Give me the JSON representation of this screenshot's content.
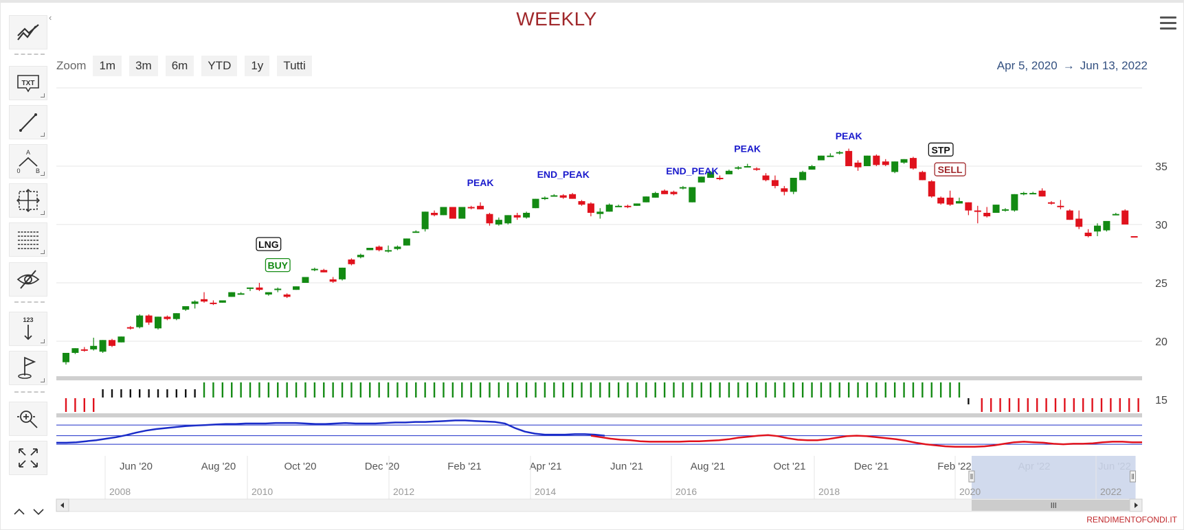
{
  "header": {
    "title": "WEEKLY"
  },
  "zoom": {
    "label": "Zoom",
    "buttons": [
      "1m",
      "3m",
      "6m",
      "YTD",
      "1y",
      "Tutti"
    ]
  },
  "range": {
    "from": "Apr 5, 2020",
    "arrow": "→",
    "to": "Jun 13, 2022"
  },
  "toolbar": {
    "icons": [
      "indicators-icon",
      "text-annotation-icon",
      "line-tool-icon",
      "measure-icon",
      "crosshair-icon",
      "fibonacci-icon",
      "hide-icon",
      "count-arrow-icon",
      "flag-icon",
      "zoom-icon",
      "fullscreen-icon"
    ],
    "text_label": "TXT",
    "count_label": "123",
    "measure_labels": [
      "A",
      "0",
      "B"
    ]
  },
  "credit": "RENDIMENTOFONDI.IT",
  "colors": {
    "up": "#138a13",
    "down": "#e0121d",
    "signal_green": "#138a13",
    "signal_red": "#e0121d",
    "signal_black": "#111111",
    "oscillator_blue": "#1a2cc8",
    "oscillator_red": "#e0121d",
    "navigator_fill": "#ccd6eb",
    "annotation_blue": "#1a1acc"
  },
  "chart_data": {
    "type": "candlestick",
    "interval": "weekly",
    "x_range": [
      "2020-04-05",
      "2022-06-13"
    ],
    "ylim": [
      15,
      38
    ],
    "y_ticks": [
      15,
      20,
      25,
      30,
      35
    ],
    "x_tick_labels": [
      "Jun '20",
      "Aug '20",
      "Oct '20",
      "Dec '20",
      "Feb '21",
      "Apr '21",
      "Jun '21",
      "Aug '21",
      "Oct '21",
      "Dec '21",
      "Feb '22",
      "Apr '22",
      "Jun '22"
    ],
    "grid": true,
    "candles": [
      [
        18.2,
        19.0,
        18.0,
        19.0
      ],
      [
        19.0,
        19.4,
        18.9,
        19.4
      ],
      [
        19.3,
        19.5,
        19.1,
        19.2
      ],
      [
        19.3,
        20.3,
        19.2,
        19.6
      ],
      [
        19.1,
        20.1,
        19.0,
        20.1
      ],
      [
        20.1,
        20.2,
        19.5,
        19.6
      ],
      [
        19.9,
        20.4,
        19.9,
        20.4
      ],
      [
        21.2,
        21.3,
        21.0,
        21.1
      ],
      [
        21.2,
        22.3,
        21.1,
        22.2
      ],
      [
        22.2,
        22.3,
        21.4,
        21.6
      ],
      [
        21.1,
        22.1,
        21.0,
        22.1
      ],
      [
        22.1,
        22.2,
        21.8,
        21.9
      ],
      [
        21.9,
        22.4,
        21.8,
        22.4
      ],
      [
        22.7,
        23.0,
        22.6,
        23.0
      ],
      [
        23.2,
        23.5,
        22.8,
        23.4
      ],
      [
        23.6,
        24.2,
        23.3,
        23.4
      ],
      [
        23.3,
        23.5,
        23.1,
        23.2
      ],
      [
        23.3,
        23.5,
        23.3,
        23.5
      ],
      [
        23.8,
        24.2,
        23.8,
        24.2
      ],
      [
        24.1,
        24.2,
        24.0,
        24.1
      ],
      [
        24.5,
        24.6,
        24.3,
        24.6
      ],
      [
        24.6,
        25.0,
        24.3,
        24.4
      ],
      [
        24.0,
        24.2,
        23.9,
        24.2
      ],
      [
        24.4,
        24.6,
        24.2,
        24.5
      ],
      [
        24.0,
        24.1,
        23.7,
        23.8
      ],
      [
        24.4,
        24.7,
        24.4,
        24.7
      ],
      [
        25.0,
        25.5,
        25.0,
        25.5
      ],
      [
        26.1,
        26.3,
        26.0,
        26.2
      ],
      [
        26.1,
        26.2,
        25.9,
        25.9
      ],
      [
        25.3,
        25.5,
        25.0,
        25.1
      ],
      [
        25.3,
        26.3,
        25.2,
        26.3
      ],
      [
        27.0,
        27.1,
        26.5,
        26.6
      ],
      [
        27.2,
        27.5,
        27.1,
        27.4
      ],
      [
        27.8,
        28.0,
        27.8,
        28.0
      ],
      [
        28.1,
        28.2,
        27.7,
        27.8
      ],
      [
        27.8,
        28.2,
        27.6,
        27.8
      ],
      [
        27.9,
        28.2,
        27.8,
        28.1
      ],
      [
        28.2,
        28.8,
        28.2,
        28.8
      ],
      [
        29.4,
        29.5,
        29.3,
        29.4
      ],
      [
        29.6,
        31.1,
        29.4,
        31.1
      ],
      [
        31.0,
        31.2,
        30.7,
        30.8
      ],
      [
        30.8,
        31.5,
        30.8,
        31.5
      ],
      [
        31.5,
        31.5,
        30.5,
        30.5
      ],
      [
        30.5,
        31.5,
        30.5,
        31.5
      ],
      [
        31.5,
        31.6,
        31.3,
        31.4
      ],
      [
        31.6,
        31.9,
        31.3,
        31.3
      ],
      [
        30.9,
        31.0,
        29.9,
        30.1
      ],
      [
        30.0,
        30.6,
        29.9,
        30.4
      ],
      [
        30.1,
        30.8,
        30.0,
        30.8
      ],
      [
        30.8,
        31.0,
        30.4,
        30.6
      ],
      [
        30.6,
        31.1,
        30.5,
        31.0
      ],
      [
        31.4,
        32.2,
        31.4,
        32.2
      ],
      [
        32.3,
        32.4,
        32.1,
        32.3
      ],
      [
        32.4,
        32.6,
        32.4,
        32.5
      ],
      [
        32.5,
        32.6,
        32.2,
        32.3
      ],
      [
        32.6,
        32.7,
        32.2,
        32.2
      ],
      [
        32.0,
        32.1,
        31.6,
        31.7
      ],
      [
        31.8,
        31.9,
        30.7,
        31.0
      ],
      [
        30.9,
        31.4,
        30.5,
        31.1
      ],
      [
        31.1,
        31.8,
        31.1,
        31.7
      ],
      [
        31.5,
        31.7,
        31.5,
        31.6
      ],
      [
        31.6,
        31.7,
        31.4,
        31.5
      ],
      [
        31.6,
        31.8,
        31.6,
        31.8
      ],
      [
        31.9,
        32.4,
        31.9,
        32.4
      ],
      [
        32.3,
        32.8,
        32.3,
        32.7
      ],
      [
        32.9,
        33.0,
        32.6,
        32.6
      ],
      [
        32.8,
        32.9,
        32.5,
        32.6
      ],
      [
        33.1,
        33.3,
        33.0,
        33.2
      ],
      [
        31.9,
        33.2,
        31.9,
        33.2
      ],
      [
        33.6,
        34.1,
        33.6,
        34.1
      ],
      [
        34.0,
        34.6,
        34.0,
        34.5
      ],
      [
        34.0,
        34.2,
        33.8,
        33.9
      ],
      [
        34.3,
        34.7,
        34.3,
        34.6
      ],
      [
        34.8,
        35.0,
        34.7,
        34.9
      ],
      [
        35.0,
        35.2,
        34.9,
        35.0
      ],
      [
        34.8,
        34.9,
        34.6,
        34.7
      ],
      [
        34.2,
        34.4,
        33.7,
        33.8
      ],
      [
        33.8,
        34.2,
        33.1,
        33.3
      ],
      [
        33.1,
        33.3,
        32.5,
        32.8
      ],
      [
        32.8,
        34.0,
        32.6,
        34.0
      ],
      [
        33.8,
        34.6,
        33.8,
        34.5
      ],
      [
        34.7,
        35.1,
        34.7,
        35.0
      ],
      [
        35.5,
        35.9,
        35.5,
        35.9
      ],
      [
        35.9,
        36.1,
        35.8,
        35.9
      ],
      [
        36.1,
        36.3,
        36.0,
        36.2
      ],
      [
        36.3,
        36.5,
        35.0,
        35.0
      ],
      [
        35.3,
        35.5,
        34.6,
        34.9
      ],
      [
        35.0,
        35.9,
        35.0,
        35.9
      ],
      [
        35.9,
        36.0,
        35.0,
        35.1
      ],
      [
        35.4,
        35.6,
        35.0,
        35.1
      ],
      [
        34.5,
        35.4,
        34.4,
        35.4
      ],
      [
        35.3,
        35.6,
        35.2,
        35.6
      ],
      [
        35.7,
        35.8,
        34.7,
        34.8
      ],
      [
        34.5,
        34.6,
        33.8,
        33.8
      ],
      [
        33.7,
        33.8,
        32.3,
        32.4
      ],
      [
        32.3,
        32.4,
        31.7,
        31.8
      ],
      [
        32.3,
        32.9,
        31.6,
        31.7
      ],
      [
        31.8,
        32.3,
        31.8,
        32.0
      ],
      [
        31.9,
        31.9,
        30.8,
        31.2
      ],
      [
        31.2,
        31.6,
        30.1,
        31.1
      ],
      [
        31.0,
        31.5,
        30.6,
        30.7
      ],
      [
        31.0,
        31.7,
        31.0,
        31.7
      ],
      [
        31.2,
        31.4,
        31.1,
        31.3
      ],
      [
        31.2,
        32.6,
        31.1,
        32.6
      ],
      [
        32.7,
        32.8,
        32.5,
        32.7
      ],
      [
        32.7,
        32.8,
        32.6,
        32.7
      ],
      [
        32.9,
        33.1,
        32.4,
        32.4
      ],
      [
        31.9,
        32.0,
        31.7,
        31.8
      ],
      [
        31.6,
        32.1,
        31.3,
        31.5
      ],
      [
        31.2,
        31.3,
        30.4,
        30.4
      ],
      [
        30.5,
        31.2,
        29.6,
        29.8
      ],
      [
        29.3,
        29.6,
        28.9,
        29.0
      ],
      [
        29.4,
        30.1,
        29.0,
        29.9
      ],
      [
        29.5,
        30.2,
        29.4,
        30.3
      ],
      [
        30.9,
        31.0,
        30.8,
        30.9
      ],
      [
        31.2,
        31.3,
        30.0,
        30.0
      ],
      [
        29.0,
        29.0,
        28.9,
        28.9
      ]
    ],
    "annotations": [
      {
        "text": "LNG",
        "index": 22,
        "price": 28.0,
        "style": "boxed-black"
      },
      {
        "text": "BUY",
        "index": 23,
        "price": 26.2,
        "style": "boxed-green"
      },
      {
        "text": "PEAK",
        "index": 45,
        "price": 33.3,
        "style": "plain-blue"
      },
      {
        "text": "END_PEAK",
        "index": 54,
        "price": 34.0,
        "style": "plain-blue"
      },
      {
        "text": "END_PEAK",
        "index": 68,
        "price": 34.3,
        "style": "plain-blue"
      },
      {
        "text": "PEAK",
        "index": 74,
        "price": 36.2,
        "style": "plain-blue"
      },
      {
        "text": "PEAK",
        "index": 85,
        "price": 37.3,
        "style": "plain-blue"
      },
      {
        "text": "STP",
        "index": 95,
        "price": 36.1,
        "style": "boxed-black"
      },
      {
        "text": "SELL",
        "index": 96,
        "price": 34.4,
        "style": "boxed-red"
      }
    ],
    "signal_bars": {
      "red_start": [
        0,
        4
      ],
      "black": [
        4,
        15
      ],
      "green": [
        15,
        98
      ],
      "black_single": [
        98,
        99
      ],
      "red_end": [
        99,
        117
      ]
    },
    "oscillator": {
      "blue_series": [
        0.55,
        0.55,
        0.56,
        0.58,
        0.6,
        0.63,
        0.66,
        0.7,
        0.75,
        0.79,
        0.82,
        0.84,
        0.86,
        0.88,
        0.89,
        0.9,
        0.91,
        0.92,
        0.92,
        0.93,
        0.93,
        0.93,
        0.94,
        0.94,
        0.94,
        0.93,
        0.92,
        0.92,
        0.93,
        0.94,
        0.93,
        0.93,
        0.93,
        0.94,
        0.95,
        0.95,
        0.96,
        0.96,
        0.97,
        0.98,
        0.99,
        0.99,
        0.98,
        0.97,
        0.96,
        0.93,
        0.84,
        0.77,
        0.73,
        0.71,
        0.71,
        0.71,
        0.72,
        0.72,
        0.71,
        0.69
      ],
      "red_series": [
        0.69,
        0.66,
        0.63,
        0.61,
        0.6,
        0.58,
        0.57,
        0.57,
        0.57,
        0.57,
        0.58,
        0.58,
        0.59,
        0.6,
        0.62,
        0.65,
        0.67,
        0.69,
        0.7,
        0.68,
        0.64,
        0.61,
        0.6,
        0.6,
        0.62,
        0.65,
        0.68,
        0.69,
        0.68,
        0.66,
        0.64,
        0.62,
        0.59,
        0.55,
        0.52,
        0.5,
        0.48,
        0.47,
        0.47,
        0.47,
        0.48,
        0.5,
        0.53,
        0.56,
        0.57,
        0.56,
        0.55,
        0.53,
        0.52,
        0.53,
        0.53,
        0.54,
        0.56,
        0.57,
        0.57,
        0.56,
        0.56
      ],
      "levels": [
        0.9,
        0.69,
        0.52
      ]
    },
    "navigator": {
      "year_labels": [
        "2008",
        "2010",
        "2012",
        "2014",
        "2016",
        "2018",
        "2020",
        "2022"
      ],
      "selection_fraction": [
        0.843,
        0.994
      ]
    }
  }
}
